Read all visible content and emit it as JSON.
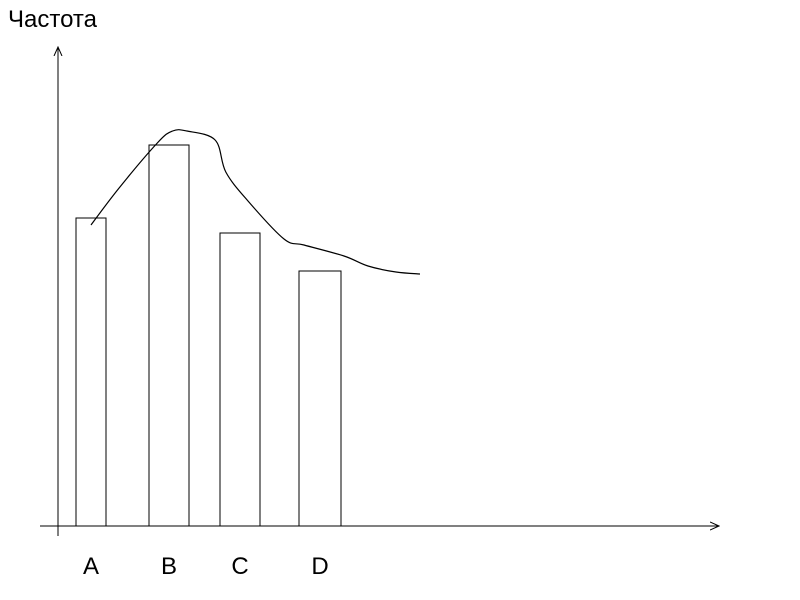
{
  "chart_data": {
    "type": "bar",
    "ylabel": "Частота",
    "xlabel": "",
    "categories": [
      "A",
      "B",
      "C",
      "D"
    ],
    "values": [
      308,
      381,
      293,
      255
    ],
    "ylim": [
      0,
      480
    ],
    "grid": false,
    "curve": {
      "type": "line",
      "x": [
        0.0,
        0.35,
        0.85,
        1.05,
        1.25,
        1.65,
        1.8,
        2.1,
        2.55,
        2.8,
        3.3,
        3.6,
        3.95,
        4.25
      ],
      "y": [
        301,
        337,
        383,
        395,
        395,
        386,
        354,
        325,
        287,
        281,
        270,
        260,
        254,
        252
      ]
    }
  },
  "colors": {
    "stroke": "#000000",
    "bar_fill": "#ffffff",
    "background": "#ffffff"
  }
}
